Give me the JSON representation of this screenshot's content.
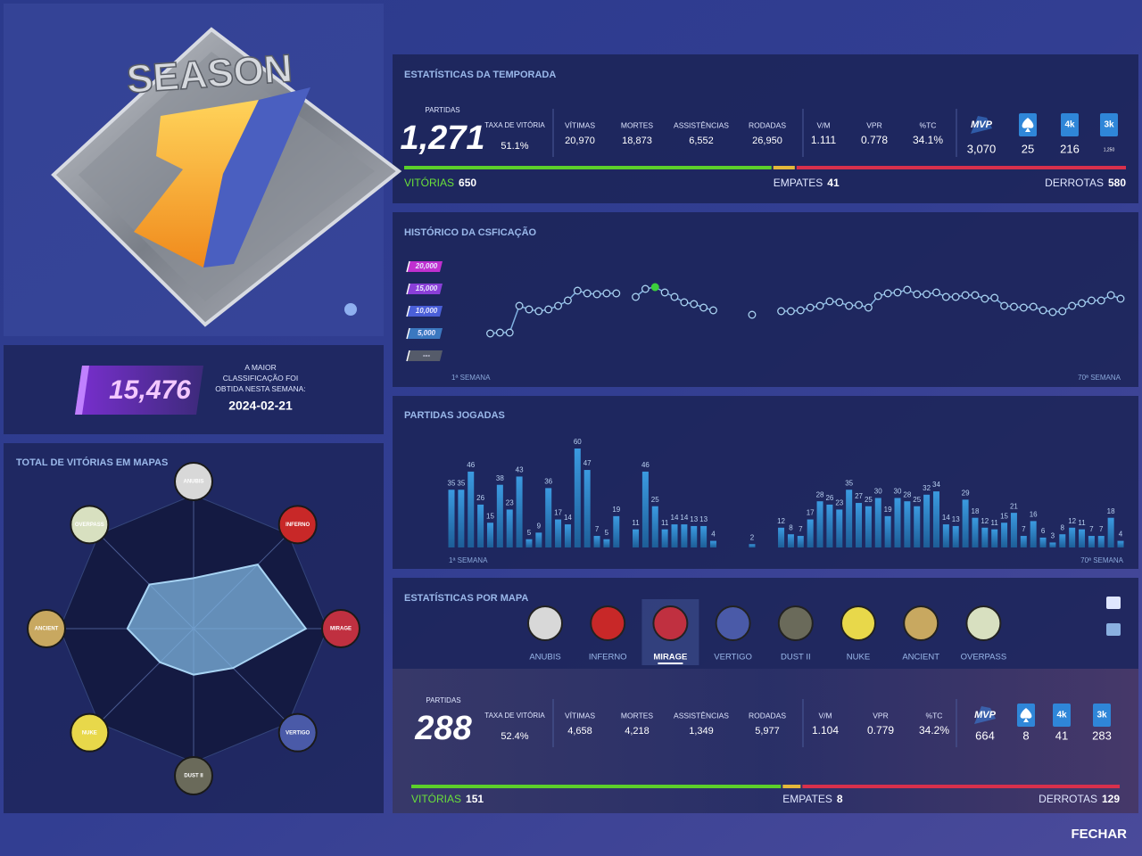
{
  "season": {
    "label": "SEASON"
  },
  "rank": {
    "value": "15,476",
    "caption": "A MAIOR CLASSIFICAÇÃO FOI OBTIDA NESTA SEMANA:",
    "date": "2024-02-21"
  },
  "season_stats": {
    "title": "ESTATÍSTICAS DA TEMPORADA",
    "matches_label": "PARTIDAS",
    "matches": "1,271",
    "winrate_label": "TAXA DE VITÓRIA",
    "winrate": "51.1%",
    "stats": [
      {
        "label": "VÍTIMAS",
        "value": "20,970"
      },
      {
        "label": "MORTES",
        "value": "18,873"
      },
      {
        "label": "ASSISTÊNCIAS",
        "value": "6,552"
      },
      {
        "label": "RODADAS",
        "value": "26,950"
      }
    ],
    "ratios": [
      {
        "label": "V/M",
        "value": "1.111"
      },
      {
        "label": "VPR",
        "value": "0.778"
      },
      {
        "label": "%TC",
        "value": "34.1%"
      }
    ],
    "awards": [
      {
        "label": "MVP",
        "value": "3,070"
      },
      {
        "value": "25"
      },
      {
        "label": "4k",
        "value": "216"
      },
      {
        "label": "3k",
        "value": "1,250"
      }
    ],
    "record": {
      "wins_label": "VITÓRIAS",
      "wins": 650,
      "ties_label": "EMPATES",
      "ties": 41,
      "losses_label": "DERROTAS",
      "losses": 580
    }
  },
  "map_stats": {
    "title": "ESTATÍSTICAS POR MAPA",
    "maps": [
      "ANUBIS",
      "INFERNO",
      "MIRAGE",
      "VERTIGO",
      "DUST II",
      "NUKE",
      "ANCIENT",
      "OVERPASS"
    ],
    "selected_index": 2,
    "matches_label": "PARTIDAS",
    "matches": "288",
    "winrate_label": "TAXA DE VITÓRIA",
    "winrate": "52.4%",
    "stats": [
      {
        "label": "VÍTIMAS",
        "value": "4,658"
      },
      {
        "label": "MORTES",
        "value": "4,218"
      },
      {
        "label": "ASSISTÊNCIAS",
        "value": "1,349"
      },
      {
        "label": "RODADAS",
        "value": "5,977"
      }
    ],
    "ratios": [
      {
        "label": "V/M",
        "value": "1.104"
      },
      {
        "label": "VPR",
        "value": "0.779"
      },
      {
        "label": "%TC",
        "value": "34.2%"
      }
    ],
    "awards": [
      {
        "label": "MVP",
        "value": "664"
      },
      {
        "value": "8"
      },
      {
        "label": "4k",
        "value": "41"
      },
      {
        "label": "3k",
        "value": "283"
      }
    ],
    "record": {
      "wins_label": "VITÓRIAS",
      "wins": 151,
      "ties_label": "EMPATES",
      "ties": 8,
      "losses_label": "DERROTAS",
      "losses": 129
    }
  },
  "chart_data": [
    {
      "type": "radar",
      "title": "TOTAL DE VITÓRIAS EM MAPAS",
      "categories": [
        "ANUBIS",
        "INFERNO",
        "MIRAGE",
        "VERTIGO",
        "DUST II",
        "NUKE",
        "ANCIENT",
        "OVERPASS"
      ],
      "values": [
        68,
        122,
        151,
        75,
        62,
        64,
        89,
        84
      ],
      "rlim": [
        0,
        180
      ],
      "color": "#7fb6e0"
    },
    {
      "type": "line",
      "title": "HISTÓRICO DA CSFICAÇÃO",
      "categories": [
        "1ª SEMANA",
        null,
        null,
        null,
        null,
        null,
        null,
        null,
        null,
        null,
        null,
        null,
        null,
        null,
        null,
        null,
        null,
        null,
        null,
        null,
        null,
        null,
        null,
        null,
        null,
        null,
        null,
        null,
        null,
        null,
        null,
        null,
        null,
        null,
        null,
        null,
        null,
        null,
        null,
        null,
        null,
        null,
        null,
        null,
        null,
        null,
        null,
        null,
        null,
        null,
        null,
        null,
        null,
        null,
        null,
        null,
        null,
        null,
        null,
        null,
        null,
        null,
        null,
        null,
        null,
        null,
        null,
        null,
        null,
        "70ª SEMANA"
      ],
      "values": [
        null,
        null,
        null,
        null,
        5000,
        5200,
        5200,
        11200,
        10400,
        10000,
        10400,
        11200,
        12400,
        14600,
        14000,
        13800,
        14000,
        14000,
        null,
        13200,
        15000,
        15400,
        14200,
        13200,
        12000,
        11600,
        10800,
        10200,
        null,
        null,
        null,
        9200,
        null,
        null,
        10000,
        10000,
        10200,
        10800,
        11200,
        12200,
        12000,
        11200,
        11400,
        10800,
        13400,
        14000,
        14200,
        14800,
        13800,
        13800,
        14200,
        13200,
        13200,
        13600,
        13600,
        12800,
        13000,
        11200,
        11000,
        10800,
        11000,
        10200,
        9800,
        10000,
        11200,
        11800,
        12400,
        12400,
        13600,
        12800
      ],
      "ylim": [
        0,
        20000
      ],
      "yticks": [
        {
          "value": 20000,
          "label": "20,000"
        },
        {
          "value": 15000,
          "label": "15,000"
        },
        {
          "value": 10000,
          "label": "10,000"
        },
        {
          "value": 5000,
          "label": "5,000"
        },
        {
          "value": 0,
          "label": "---"
        }
      ],
      "tick_colors": [
        "#c02fd0",
        "#8a3fd8",
        "#4a5fd8",
        "#3b78c0",
        "#555b6a"
      ],
      "color": "#7fb0e0",
      "highlight_color": "#3ccf3c"
    },
    {
      "type": "bar",
      "title": "PARTIDAS JOGADAS",
      "categories": [
        "1ª SEMANA",
        null,
        null,
        null,
        null,
        null,
        null,
        null,
        null,
        null,
        null,
        null,
        null,
        null,
        null,
        null,
        null,
        null,
        null,
        null,
        null,
        null,
        null,
        null,
        null,
        null,
        null,
        null,
        null,
        null,
        null,
        null,
        null,
        null,
        null,
        null,
        null,
        null,
        null,
        null,
        null,
        null,
        null,
        null,
        null,
        null,
        null,
        null,
        null,
        null,
        null,
        null,
        null,
        null,
        null,
        null,
        null,
        null,
        null,
        null,
        null,
        null,
        null,
        null,
        null,
        null,
        null,
        null,
        null,
        "70ª SEMANA"
      ],
      "values": [
        35,
        35,
        46,
        26,
        15,
        38,
        23,
        43,
        5,
        9,
        36,
        17,
        14,
        60,
        47,
        7,
        5,
        19,
        0,
        11,
        46,
        25,
        11,
        14,
        14,
        13,
        13,
        4,
        0,
        0,
        0,
        2,
        0,
        0,
        12,
        8,
        7,
        17,
        28,
        26,
        23,
        35,
        27,
        25,
        30,
        19,
        30,
        28,
        25,
        32,
        34,
        14,
        13,
        29,
        18,
        12,
        11,
        15,
        21,
        7,
        16,
        6,
        3,
        8,
        12,
        11,
        7,
        7,
        18,
        4
      ],
      "ylim": [
        0,
        60
      ],
      "color": "#2c86c8"
    }
  ],
  "close_label": "FECHAR"
}
